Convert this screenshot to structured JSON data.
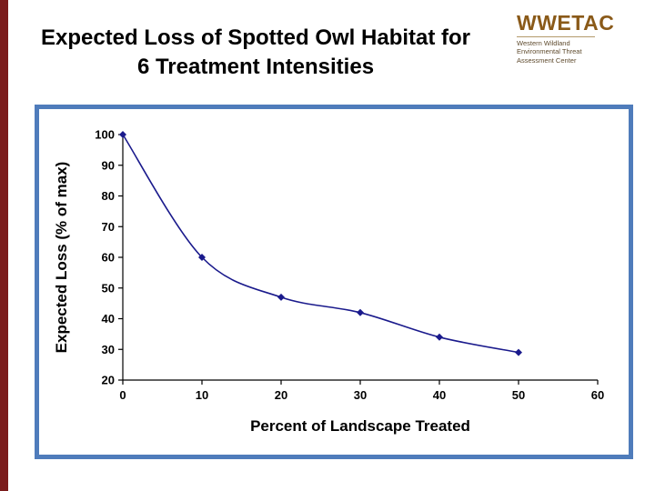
{
  "slide": {
    "title_line1": "Expected Loss of Spotted Owl Habitat for",
    "title_line2": "6 Treatment Intensities"
  },
  "logo": {
    "text": "WWETAC",
    "subtitle_lines": [
      "Western Wildland",
      "Environmental Threat",
      "Assessment Center"
    ]
  },
  "colors": {
    "stripe": "#7b1c1c",
    "frame": "#4f7cbb",
    "logo": "#8a5a19",
    "line": "#1a1a8c"
  },
  "chart_data": {
    "type": "line",
    "x": [
      0,
      10,
      20,
      30,
      40,
      50
    ],
    "values": [
      100,
      60,
      47,
      42,
      34,
      29
    ],
    "title": "",
    "xlabel": "Percent of Landscape Treated",
    "ylabel": "Expected Loss (% of max)",
    "xlim": [
      0,
      60
    ],
    "ylim": [
      20,
      100
    ],
    "x_ticks": [
      0,
      10,
      20,
      30,
      40,
      50,
      60
    ],
    "y_ticks": [
      20,
      30,
      40,
      50,
      60,
      70,
      80,
      90,
      100
    ],
    "grid": false,
    "legend": "none",
    "marker": "diamond"
  }
}
